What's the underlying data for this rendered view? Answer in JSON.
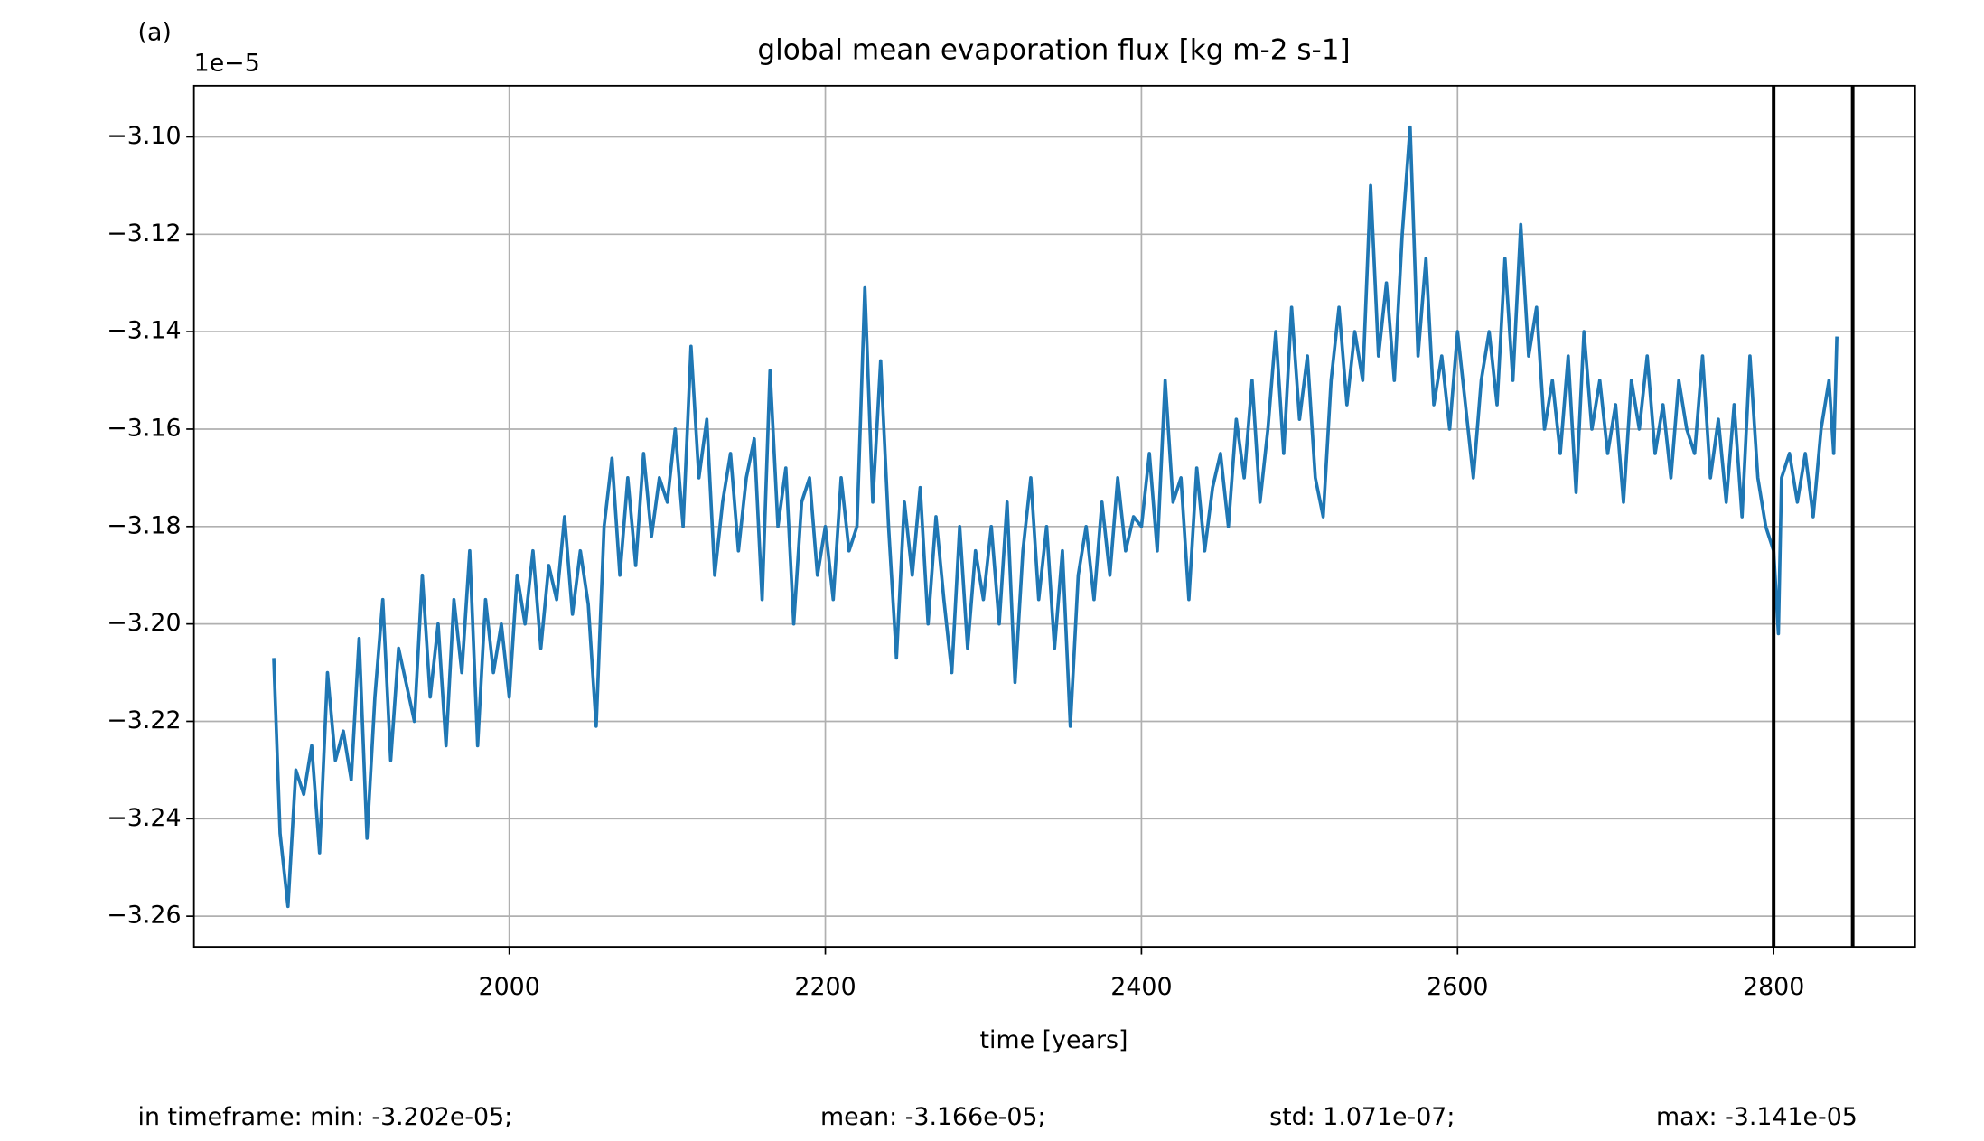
{
  "chart_data": {
    "type": "line",
    "panel_label": "(a)",
    "title": "global mean evaporation flux [kg m-2 s-1]",
    "offset_label": "1e−5",
    "xlabel": "time [years]",
    "stats": [
      "in timeframe: min: -3.202e-05;",
      "mean: -3.166e-05;",
      "std: 1.071e-07;",
      "max: -3.141e-05"
    ],
    "xlim": [
      1800.5,
      2889.5
    ],
    "ylim": [
      -3.2663,
      -3.0895
    ],
    "xticks": [
      2000,
      2200,
      2400,
      2600,
      2800
    ],
    "yticks": [
      {
        "value": -3.26,
        "label": "−3.26"
      },
      {
        "value": -3.24,
        "label": "−3.24"
      },
      {
        "value": -3.22,
        "label": "−3.22"
      },
      {
        "value": -3.2,
        "label": "−3.20"
      },
      {
        "value": -3.18,
        "label": "−3.18"
      },
      {
        "value": -3.16,
        "label": "−3.16"
      },
      {
        "value": -3.14,
        "label": "−3.14"
      },
      {
        "value": -3.12,
        "label": "−3.12"
      },
      {
        "value": -3.1,
        "label": "−3.10"
      }
    ],
    "grid": true,
    "vlines": [
      2800,
      2850
    ],
    "vline_color": "#000000",
    "series": [
      {
        "color": "#1f77b4",
        "x": [
          1851,
          1855,
          1860,
          1865,
          1870,
          1875,
          1880,
          1885,
          1890,
          1895,
          1900,
          1905,
          1910,
          1915,
          1920,
          1925,
          1930,
          1940,
          1945,
          1950,
          1955,
          1960,
          1965,
          1970,
          1975,
          1980,
          1985,
          1990,
          1995,
          2000,
          2005,
          2010,
          2015,
          2020,
          2025,
          2030,
          2035,
          2040,
          2045,
          2050,
          2055,
          2060,
          2065,
          2070,
          2075,
          2080,
          2085,
          2090,
          2095,
          2100,
          2105,
          2110,
          2115,
          2120,
          2125,
          2130,
          2135,
          2140,
          2145,
          2150,
          2155,
          2160,
          2165,
          2170,
          2175,
          2180,
          2185,
          2190,
          2195,
          2200,
          2205,
          2210,
          2215,
          2220,
          2225,
          2230,
          2235,
          2240,
          2245,
          2250,
          2255,
          2260,
          2265,
          2270,
          2275,
          2280,
          2285,
          2290,
          2295,
          2300,
          2305,
          2310,
          2315,
          2320,
          2325,
          2330,
          2335,
          2340,
          2345,
          2350,
          2355,
          2360,
          2365,
          2370,
          2375,
          2380,
          2385,
          2390,
          2395,
          2400,
          2405,
          2410,
          2415,
          2420,
          2425,
          2430,
          2435,
          2440,
          2445,
          2450,
          2455,
          2460,
          2465,
          2470,
          2475,
          2480,
          2485,
          2490,
          2495,
          2500,
          2505,
          2510,
          2515,
          2520,
          2525,
          2530,
          2535,
          2540,
          2545,
          2550,
          2555,
          2560,
          2565,
          2570,
          2575,
          2580,
          2585,
          2590,
          2595,
          2600,
          2605,
          2610,
          2615,
          2620,
          2625,
          2630,
          2635,
          2640,
          2645,
          2650,
          2655,
          2660,
          2665,
          2670,
          2675,
          2680,
          2685,
          2690,
          2695,
          2700,
          2705,
          2710,
          2715,
          2720,
          2725,
          2730,
          2735,
          2740,
          2745,
          2750,
          2755,
          2760,
          2765,
          2770,
          2775,
          2780,
          2785,
          2790,
          2795,
          2800,
          2803,
          2805,
          2810,
          2815,
          2820,
          2825,
          2830,
          2835,
          2838,
          2840
        ],
        "values": [
          -3.207,
          -3.243,
          -3.258,
          -3.23,
          -3.235,
          -3.225,
          -3.247,
          -3.21,
          -3.228,
          -3.222,
          -3.232,
          -3.203,
          -3.244,
          -3.215,
          -3.195,
          -3.228,
          -3.205,
          -3.22,
          -3.19,
          -3.215,
          -3.2,
          -3.225,
          -3.195,
          -3.21,
          -3.185,
          -3.225,
          -3.195,
          -3.21,
          -3.2,
          -3.215,
          -3.19,
          -3.2,
          -3.185,
          -3.205,
          -3.188,
          -3.195,
          -3.178,
          -3.198,
          -3.185,
          -3.196,
          -3.221,
          -3.18,
          -3.166,
          -3.19,
          -3.17,
          -3.188,
          -3.165,
          -3.182,
          -3.17,
          -3.175,
          -3.16,
          -3.18,
          -3.143,
          -3.17,
          -3.158,
          -3.19,
          -3.175,
          -3.165,
          -3.185,
          -3.17,
          -3.162,
          -3.195,
          -3.148,
          -3.18,
          -3.168,
          -3.2,
          -3.175,
          -3.17,
          -3.19,
          -3.18,
          -3.195,
          -3.17,
          -3.185,
          -3.18,
          -3.131,
          -3.175,
          -3.146,
          -3.18,
          -3.207,
          -3.175,
          -3.19,
          -3.172,
          -3.2,
          -3.178,
          -3.195,
          -3.21,
          -3.18,
          -3.205,
          -3.185,
          -3.195,
          -3.18,
          -3.2,
          -3.175,
          -3.212,
          -3.185,
          -3.17,
          -3.195,
          -3.18,
          -3.205,
          -3.185,
          -3.221,
          -3.19,
          -3.18,
          -3.195,
          -3.175,
          -3.19,
          -3.17,
          -3.185,
          -3.178,
          -3.18,
          -3.165,
          -3.185,
          -3.15,
          -3.175,
          -3.17,
          -3.195,
          -3.168,
          -3.185,
          -3.172,
          -3.165,
          -3.18,
          -3.158,
          -3.17,
          -3.15,
          -3.175,
          -3.16,
          -3.14,
          -3.165,
          -3.135,
          -3.158,
          -3.145,
          -3.17,
          -3.178,
          -3.15,
          -3.135,
          -3.155,
          -3.14,
          -3.15,
          -3.11,
          -3.145,
          -3.13,
          -3.15,
          -3.12,
          -3.098,
          -3.145,
          -3.125,
          -3.155,
          -3.145,
          -3.16,
          -3.14,
          -3.155,
          -3.17,
          -3.15,
          -3.14,
          -3.155,
          -3.125,
          -3.15,
          -3.118,
          -3.145,
          -3.135,
          -3.16,
          -3.15,
          -3.165,
          -3.145,
          -3.173,
          -3.14,
          -3.16,
          -3.15,
          -3.165,
          -3.155,
          -3.175,
          -3.15,
          -3.16,
          -3.145,
          -3.165,
          -3.155,
          -3.17,
          -3.15,
          -3.16,
          -3.165,
          -3.145,
          -3.17,
          -3.158,
          -3.175,
          -3.155,
          -3.178,
          -3.145,
          -3.17,
          -3.18,
          -3.185,
          -3.202,
          -3.17,
          -3.165,
          -3.175,
          -3.165,
          -3.178,
          -3.16,
          -3.15,
          -3.165,
          -3.141
        ]
      }
    ]
  }
}
